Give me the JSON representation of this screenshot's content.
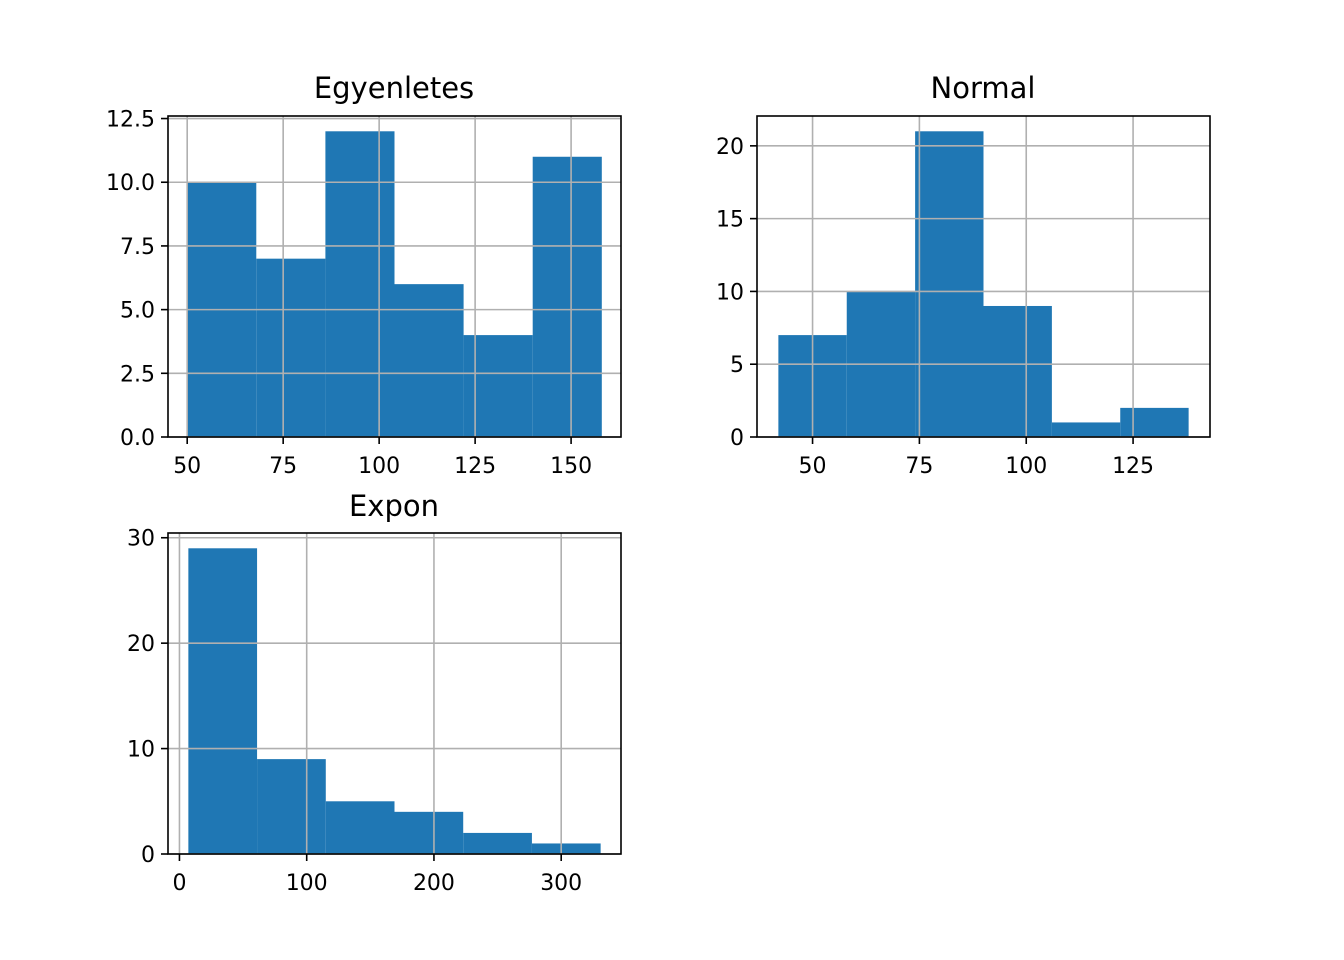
{
  "colors": {
    "bar": "#1f77b4",
    "grid": "#b0b0b0",
    "frame": "#000000",
    "background": "#ffffff"
  },
  "chart_data": [
    {
      "type": "bar",
      "title": "Egyenletes",
      "xlabel": "",
      "ylabel": "",
      "grid": true,
      "bin_edges": [
        50,
        68,
        86,
        104,
        122,
        140,
        158
      ],
      "values": [
        10,
        7,
        12,
        6,
        4,
        11
      ],
      "xlim": [
        45,
        163
      ],
      "ylim": [
        0,
        12.6
      ],
      "xticks": [
        50,
        75,
        100,
        125,
        150
      ],
      "yticks": [
        0,
        2.5,
        5,
        7.5,
        10,
        12.5
      ],
      "xtick_labels": [
        "50",
        "75",
        "100",
        "125",
        "150"
      ],
      "ytick_labels": [
        "0.0",
        "2.5",
        "5.0",
        "7.5",
        "10.0",
        "12.5"
      ]
    },
    {
      "type": "bar",
      "title": "Normal",
      "xlabel": "",
      "ylabel": "",
      "grid": true,
      "bin_edges": [
        42,
        58,
        74,
        90,
        106,
        122,
        138
      ],
      "values": [
        7,
        10,
        21,
        9,
        1,
        2
      ],
      "xlim": [
        37,
        143
      ],
      "ylim": [
        0,
        22.05
      ],
      "xticks": [
        50,
        75,
        100,
        125
      ],
      "yticks": [
        0,
        5,
        10,
        15,
        20
      ],
      "xtick_labels": [
        "50",
        "75",
        "100",
        "125"
      ],
      "ytick_labels": [
        "0",
        "5",
        "10",
        "15",
        "20"
      ]
    },
    {
      "type": "bar",
      "title": "Expon",
      "xlabel": "",
      "ylabel": "",
      "grid": true,
      "bin_edges": [
        7,
        61,
        115,
        169,
        223,
        277,
        331
      ],
      "values": [
        29,
        9,
        5,
        4,
        2,
        1
      ],
      "xlim": [
        -9,
        347
      ],
      "ylim": [
        0,
        30.45
      ],
      "xticks": [
        0,
        100,
        200,
        300
      ],
      "yticks": [
        0,
        10,
        20,
        30
      ],
      "xtick_labels": [
        "0",
        "100",
        "200",
        "300"
      ],
      "ytick_labels": [
        "0",
        "10",
        "20",
        "30"
      ]
    }
  ]
}
